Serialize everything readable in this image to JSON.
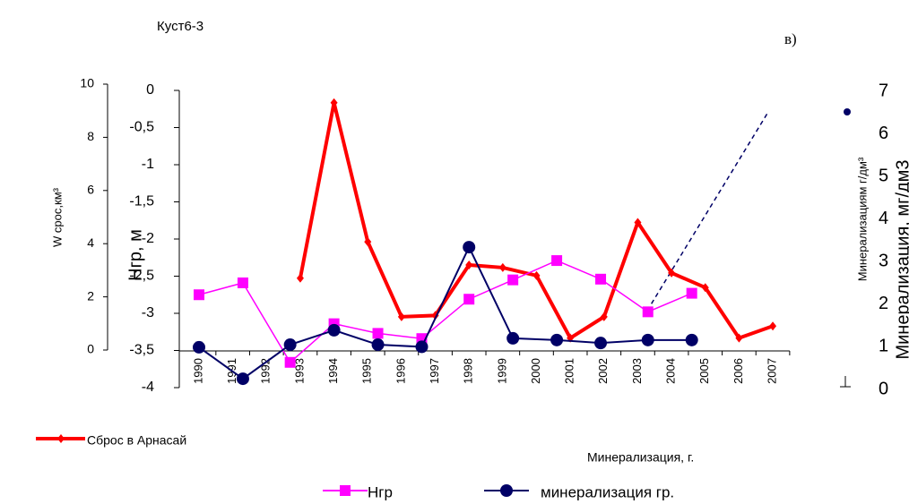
{
  "chart_data": {
    "type": "line",
    "title": "Куст6-3",
    "subtitle": "в)",
    "categories": [
      "1990",
      "1991",
      "1992",
      "1993",
      "1994",
      "1995",
      "1996",
      "1997",
      "1998",
      "1999",
      "2000",
      "2001",
      "2002",
      "2003",
      "2004",
      "2005",
      "2006",
      "2007"
    ],
    "x_label": "Минерализация, г.",
    "y_label": "W срос,км³",
    "ylim": [
      0,
      10
    ],
    "yticks": [
      0,
      2,
      4,
      6,
      8,
      10
    ],
    "y2_label": "Нгр, м",
    "y2lim": [
      -4,
      0
    ],
    "y2ticks": [
      0,
      {
        "value": -0.5,
        "label": "-0,5"
      },
      -1,
      {
        "value": -1.5,
        "label": "-1,5"
      },
      -2,
      {
        "value": -2.5,
        "label": "-2,5"
      },
      -3,
      {
        "value": -3.5,
        "label": "-3,5"
      },
      -4
    ],
    "y3_label": "Минерализация, мг/дм3",
    "y3_label_small": "Минерализациям г/дм³",
    "y3lim": [
      0,
      7
    ],
    "y3ticks": [
      0,
      1,
      2,
      3,
      4,
      5,
      6,
      7
    ],
    "series": [
      {
        "name": "Сброс в Арнасай",
        "color": "#ff0000",
        "axis": "y",
        "marker": "diamond",
        "values": [
          null,
          null,
          null,
          2.7,
          9.3,
          4.07,
          1.25,
          1.3,
          3.2,
          3.1,
          2.8,
          0.45,
          1.25,
          4.8,
          2.9,
          2.35,
          0.45,
          0.9
        ]
      },
      {
        "name": "Нгр",
        "color": "#ff00ff",
        "axis": "y2",
        "marker": "square",
        "x": [
          1990,
          1991.3,
          1992.7,
          1994,
          1995.3,
          1996.6,
          1998,
          1999.3,
          2000.6,
          2001.9,
          2003.3,
          2004.6
        ],
        "values": [
          -2.75,
          -2.59,
          -3.66,
          -3.14,
          -3.27,
          -3.34,
          -2.81,
          -2.55,
          -2.29,
          -2.54,
          -2.98,
          -2.73
        ]
      },
      {
        "name": "минерализация гр.",
        "color": "#000066",
        "axis": "y3",
        "marker": "circle",
        "x": [
          1990,
          1991.3,
          1992.7,
          1994,
          1995.3,
          1996.6,
          1998,
          1999.3,
          2000.6,
          2001.9,
          2003.3,
          2004.6
        ],
        "values": [
          0.99,
          0.25,
          1.05,
          1.39,
          1.05,
          1.0,
          3.34,
          1.2,
          1.16,
          1.09,
          1.16,
          1.16
        ]
      }
    ]
  }
}
